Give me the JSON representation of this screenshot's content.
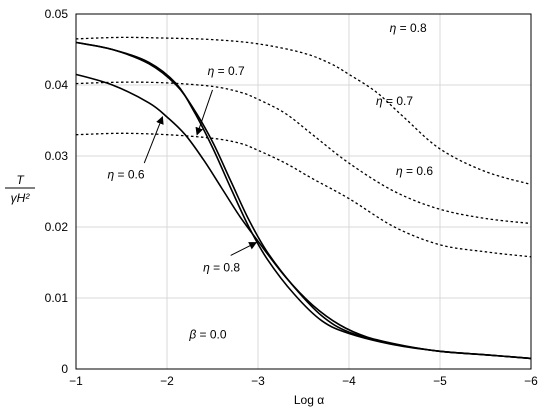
{
  "chart_data": {
    "type": "line",
    "xlabel": "Log α",
    "ylabel_top": "T",
    "ylabel_bottom": "γH²",
    "xlim": [
      -1,
      -6
    ],
    "ylim": [
      0,
      0.05
    ],
    "x_ticks": [
      -1,
      -2,
      -3,
      -4,
      -5,
      -6
    ],
    "x_tick_labels": [
      "−1",
      "−2",
      "−3",
      "−4",
      "−5",
      "−6"
    ],
    "y_ticks": [
      0,
      0.01,
      0.02,
      0.03,
      0.04,
      0.05
    ],
    "y_tick_labels": [
      "0",
      "0.01",
      "0.02",
      "0.03",
      "0.04",
      "0.05"
    ],
    "grid": true,
    "series": [
      {
        "name": "η = 0.8",
        "style": "dotted",
        "x": [
          -1.0,
          -1.5,
          -2.0,
          -2.5,
          -3.0,
          -3.5,
          -3.8,
          -4.0,
          -4.3,
          -4.6,
          -5.0,
          -5.5,
          -6.0
        ],
        "y": [
          0.0465,
          0.0467,
          0.0466,
          0.0464,
          0.0458,
          0.0445,
          0.043,
          0.0415,
          0.039,
          0.0355,
          0.031,
          0.0278,
          0.026
        ]
      },
      {
        "name": "η = 0.7",
        "style": "dotted",
        "x": [
          -1.0,
          -1.5,
          -2.0,
          -2.5,
          -2.8,
          -3.0,
          -3.3,
          -3.6,
          -4.0,
          -4.5,
          -5.0,
          -5.5,
          -6.0
        ],
        "y": [
          0.0402,
          0.0404,
          0.0403,
          0.0398,
          0.039,
          0.038,
          0.036,
          0.033,
          0.029,
          0.025,
          0.0225,
          0.0212,
          0.0205
        ]
      },
      {
        "name": "η = 0.6",
        "style": "dotted",
        "x": [
          -1.0,
          -1.5,
          -2.0,
          -2.5,
          -2.8,
          -3.0,
          -3.3,
          -3.6,
          -4.0,
          -4.5,
          -5.0,
          -5.5,
          -6.0
        ],
        "y": [
          0.033,
          0.0332,
          0.033,
          0.0325,
          0.0318,
          0.0308,
          0.029,
          0.0268,
          0.024,
          0.02,
          0.0175,
          0.0165,
          0.0158
        ]
      },
      {
        "name": "η = 0.8",
        "style": "solid",
        "x": [
          -1.0,
          -1.4,
          -1.8,
          -2.1,
          -2.3,
          -2.5,
          -2.7,
          -2.9,
          -3.1,
          -3.4,
          -3.7,
          -4.0,
          -4.5,
          -5.0,
          -5.5,
          -6.0
        ],
        "y": [
          0.046,
          0.045,
          0.043,
          0.04,
          0.0365,
          0.032,
          0.0265,
          0.021,
          0.0165,
          0.0115,
          0.0075,
          0.0052,
          0.0035,
          0.0025,
          0.002,
          0.0015
        ]
      },
      {
        "name": "η = 0.7",
        "style": "solid",
        "x": [
          -1.0,
          -1.4,
          -1.8,
          -2.1,
          -2.3,
          -2.5,
          -2.7,
          -2.9,
          -3.1,
          -3.4,
          -3.7,
          -4.0,
          -4.5,
          -5.0,
          -5.5,
          -6.0
        ],
        "y": [
          0.046,
          0.045,
          0.0432,
          0.0402,
          0.0362,
          0.0312,
          0.0255,
          0.02,
          0.0155,
          0.0105,
          0.0068,
          0.005,
          0.0034,
          0.0025,
          0.002,
          0.0015
        ]
      },
      {
        "name": "η = 0.6",
        "style": "solid",
        "x": [
          -1.0,
          -1.4,
          -1.8,
          -2.0,
          -2.2,
          -2.4,
          -2.6,
          -2.8,
          -3.0,
          -3.3,
          -3.6,
          -3.9,
          -4.2,
          -4.6,
          -5.0,
          -5.5,
          -6.0
        ],
        "y": [
          0.0415,
          0.04,
          0.0375,
          0.0355,
          0.033,
          0.0295,
          0.0255,
          0.0215,
          0.018,
          0.013,
          0.009,
          0.0062,
          0.0045,
          0.0033,
          0.0025,
          0.002,
          0.0015
        ]
      }
    ],
    "annotations": [
      {
        "text": "η = 0.8",
        "x": -4.65,
        "y": 0.0475
      },
      {
        "text": "η = 0.7",
        "x": -4.5,
        "y": 0.0372
      },
      {
        "text": "η = 0.6",
        "x": -4.72,
        "y": 0.0273
      },
      {
        "text": "η = 0.7",
        "x": -2.65,
        "y": 0.0414
      },
      {
        "text": "η = 0.6",
        "x": -1.55,
        "y": 0.0268
      },
      {
        "text": "η = 0.8",
        "x": -2.6,
        "y": 0.0137
      },
      {
        "text": "β = 0.0",
        "x": -2.45,
        "y": 0.0043
      }
    ],
    "arrows": [
      {
        "from": [
          -2.5,
          0.0393
        ],
        "to": [
          -2.33,
          0.033
        ]
      },
      {
        "from": [
          -1.75,
          0.029
        ],
        "to": [
          -1.95,
          0.0355
        ]
      },
      {
        "from": [
          -2.7,
          0.016
        ],
        "to": [
          -2.98,
          0.0178
        ]
      }
    ]
  }
}
